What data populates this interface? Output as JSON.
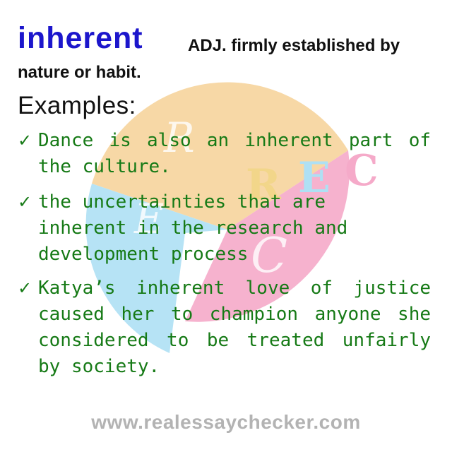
{
  "entry": {
    "word": "inherent",
    "definition": "ADJ. firmly established by nature or habit."
  },
  "examples_heading": "Examples:",
  "examples": [
    {
      "check": "✓",
      "text": "Dance is also an inherent part of the culture."
    },
    {
      "check": "✓",
      "text": "the uncertainties that are inherent in the research and development process"
    },
    {
      "check": "✓",
      "text": "Katya’s inherent love of justice caused her to champion anyone she considered to be treated unfairly by society."
    }
  ],
  "footer": {
    "url": "www.realessaychecker.com"
  },
  "watermark": {
    "letters": [
      "R",
      "E",
      "C",
      "R",
      "E",
      "C"
    ],
    "colors": {
      "top": "#f6d49c",
      "left": "#aee0f4",
      "right": "#f5aac9",
      "letter_r": "#f2d68a",
      "letter_e": "#aee0f4",
      "letter_c": "#f5aac9"
    }
  }
}
